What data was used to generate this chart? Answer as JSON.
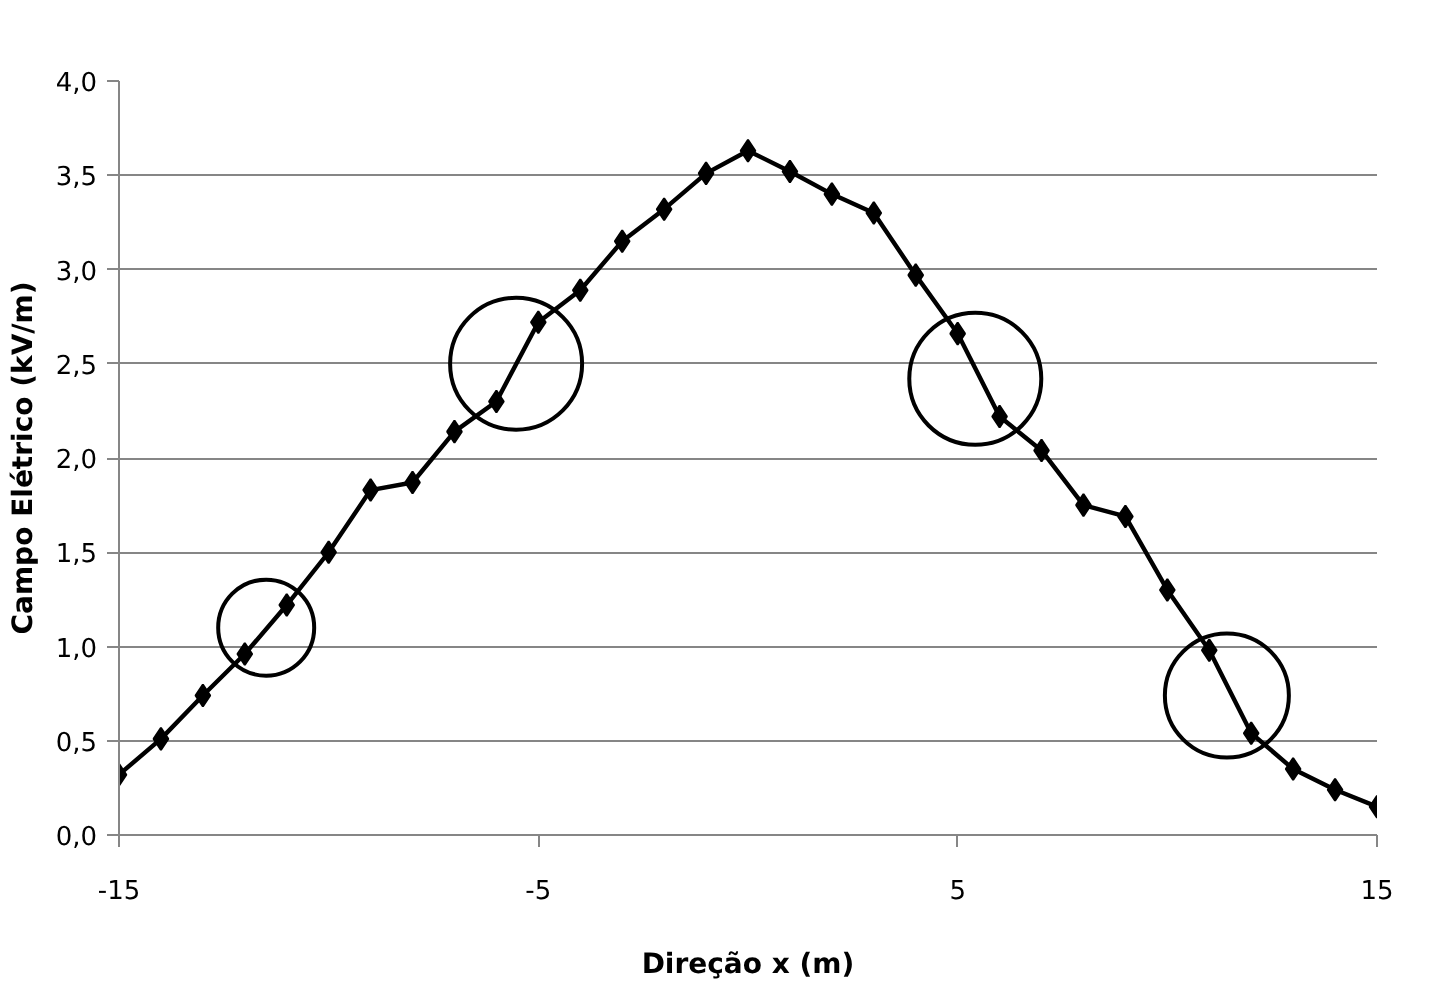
{
  "chart_data": {
    "type": "line",
    "xlabel": "Direção x (m)",
    "ylabel": "Campo Elétrico (kV/m)",
    "x": [
      -15,
      -14,
      -13,
      -12,
      -11,
      -10,
      -9,
      -8,
      -7,
      -6,
      -5,
      -4,
      -3,
      -2,
      -1,
      0,
      1,
      2,
      3,
      4,
      5,
      6,
      7,
      8,
      9,
      10,
      11,
      12,
      13,
      14,
      15
    ],
    "series": [
      {
        "color": "#000000",
        "values": [
          0.32,
          0.51,
          0.74,
          0.96,
          1.22,
          1.5,
          1.83,
          1.87,
          2.14,
          2.3,
          2.72,
          2.89,
          3.15,
          3.32,
          3.51,
          3.63,
          3.52,
          3.4,
          3.3,
          2.97,
          2.66,
          2.22,
          2.04,
          1.75,
          1.69,
          1.3,
          0.98,
          0.54,
          0.35,
          0.24,
          0.15
        ]
      }
    ],
    "xlim": [
      -15,
      15
    ],
    "xticks": [
      -15,
      -5,
      5,
      15
    ],
    "ylim": [
      0,
      4
    ],
    "yticks": [
      {
        "value": 0,
        "label": "0,0"
      },
      {
        "value": 0.5,
        "label": "0,5"
      },
      {
        "value": 1,
        "label": "1,0"
      },
      {
        "value": 1.5,
        "label": "1,5"
      },
      {
        "value": 2,
        "label": "2,0"
      },
      {
        "value": 2.5,
        "label": "2,5"
      },
      {
        "value": 3,
        "label": "3,0"
      },
      {
        "value": 3.5,
        "label": "3,5"
      },
      {
        "value": 4,
        "label": "4,0"
      }
    ],
    "grid": "y",
    "marker": "diamond",
    "line_style": "solid"
  }
}
